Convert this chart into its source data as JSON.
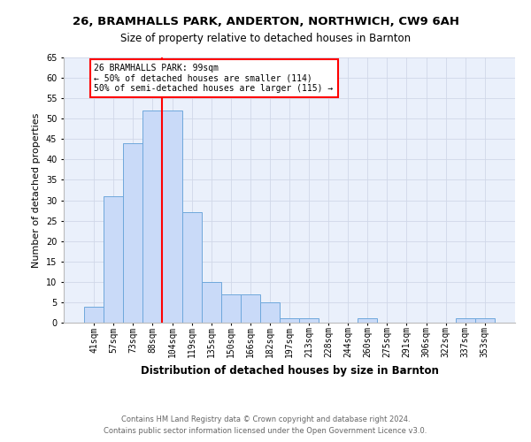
{
  "title_line1": "26, BRAMHALLS PARK, ANDERTON, NORTHWICH, CW9 6AH",
  "title_line2": "Size of property relative to detached houses in Barnton",
  "xlabel": "Distribution of detached houses by size in Barnton",
  "ylabel": "Number of detached properties",
  "bin_labels": [
    "41sqm",
    "57sqm",
    "73sqm",
    "88sqm",
    "104sqm",
    "119sqm",
    "135sqm",
    "150sqm",
    "166sqm",
    "182sqm",
    "197sqm",
    "213sqm",
    "228sqm",
    "244sqm",
    "260sqm",
    "275sqm",
    "291sqm",
    "306sqm",
    "322sqm",
    "337sqm",
    "353sqm"
  ],
  "bar_heights": [
    4,
    31,
    44,
    52,
    52,
    27,
    10,
    7,
    7,
    5,
    1,
    1,
    0,
    0,
    1,
    0,
    0,
    0,
    0,
    1,
    1
  ],
  "bar_color": "#c9daf8",
  "bar_edge_color": "#6fa8dc",
  "vline_color": "red",
  "annotation_text": "26 BRAMHALLS PARK: 99sqm\n← 50% of detached houses are smaller (114)\n50% of semi-detached houses are larger (115) →",
  "annotation_box_color": "white",
  "annotation_box_edge_color": "red",
  "ylim": [
    0,
    65
  ],
  "yticks": [
    0,
    5,
    10,
    15,
    20,
    25,
    30,
    35,
    40,
    45,
    50,
    55,
    60,
    65
  ],
  "footer_line1": "Contains HM Land Registry data © Crown copyright and database right 2024.",
  "footer_line2": "Contains public sector information licensed under the Open Government Licence v3.0.",
  "grid_color": "#d0d8e8",
  "background_color": "#eaf0fb",
  "title1_fontsize": 9.5,
  "title2_fontsize": 8.5,
  "ylabel_fontsize": 8,
  "xlabel_fontsize": 8.5,
  "tick_fontsize": 7,
  "annotation_fontsize": 7,
  "footer_fontsize": 6,
  "footer_color": "#666666"
}
